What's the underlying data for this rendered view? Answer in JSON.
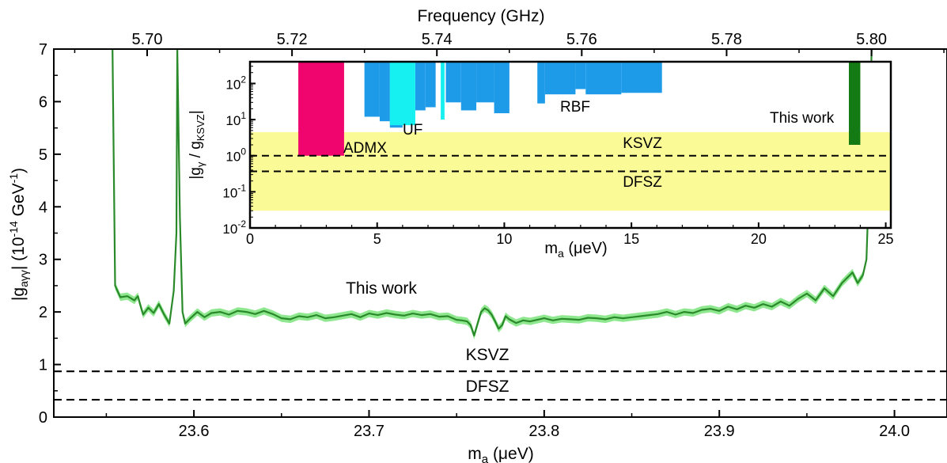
{
  "chart_data": [
    {
      "type": "line",
      "role": "main",
      "xlabel_main": "m",
      "xlabel_sub": "a",
      "xlabel_unit": " (μeV)",
      "top_xlabel": "Frequency (GHz)",
      "ylabel_pre": "|g",
      "ylabel_sub": "aγγ",
      "ylabel_post": "| (10",
      "ylabel_exp": "-14",
      "ylabel_unit": " GeV",
      "ylabel_exp2": "-1",
      "ylabel_close": ")",
      "xlim": [
        23.52,
        24.03
      ],
      "ylim": [
        0,
        7
      ],
      "x_ticks": [
        23.6,
        23.7,
        23.8,
        23.9,
        24.0
      ],
      "x_tick_labels": [
        "23.6",
        "23.7",
        "23.8",
        "23.9",
        "24.0"
      ],
      "y_ticks": [
        0,
        1,
        2,
        3,
        4,
        5,
        6,
        7
      ],
      "y_tick_labels": [
        "0",
        "1",
        "2",
        "3",
        "4",
        "5",
        "6",
        "7"
      ],
      "top_ticks": [
        5.7,
        5.72,
        5.74,
        5.76,
        5.78,
        5.8
      ],
      "top_tick_labels": [
        "5.70",
        "5.72",
        "5.74",
        "5.76",
        "5.78",
        "5.80"
      ],
      "curve": {
        "x": [
          23.5535,
          23.555,
          23.558,
          23.562,
          23.566,
          23.568,
          23.5695,
          23.571,
          23.574,
          23.577,
          23.58,
          23.583,
          23.586,
          23.5885,
          23.59,
          23.5905,
          23.592,
          23.5935,
          23.595,
          23.598,
          23.602,
          23.606,
          23.61,
          23.615,
          23.62,
          23.625,
          23.63,
          23.635,
          23.64,
          23.645,
          23.65,
          23.655,
          23.66,
          23.665,
          23.67,
          23.675,
          23.68,
          23.685,
          23.69,
          23.695,
          23.7,
          23.705,
          23.71,
          23.715,
          23.72,
          23.725,
          23.73,
          23.735,
          23.74,
          23.745,
          23.75,
          23.753,
          23.756,
          23.758,
          23.76,
          23.762,
          23.764,
          23.766,
          23.768,
          23.77,
          23.772,
          23.774,
          23.776,
          23.778,
          23.78,
          23.784,
          23.788,
          23.792,
          23.796,
          23.8,
          23.805,
          23.81,
          23.815,
          23.82,
          23.825,
          23.83,
          23.835,
          23.84,
          23.845,
          23.85,
          23.855,
          23.86,
          23.865,
          23.87,
          23.875,
          23.88,
          23.885,
          23.89,
          23.895,
          23.9,
          23.905,
          23.91,
          23.915,
          23.92,
          23.925,
          23.93,
          23.935,
          23.94,
          23.945,
          23.95,
          23.955,
          23.96,
          23.965,
          23.97,
          23.973,
          23.976,
          23.979,
          23.982,
          23.984,
          23.985,
          23.986,
          23.987
        ],
        "y": [
          7.0,
          2.5,
          2.28,
          2.3,
          2.22,
          2.3,
          2.12,
          1.95,
          2.08,
          1.98,
          2.15,
          1.95,
          1.78,
          2.4,
          3.5,
          7.0,
          3.8,
          2.0,
          1.78,
          1.88,
          2.0,
          1.9,
          1.98,
          2.0,
          1.95,
          2.02,
          2.0,
          1.96,
          2.02,
          1.96,
          1.88,
          1.86,
          1.92,
          1.9,
          1.94,
          1.88,
          1.9,
          1.93,
          1.96,
          1.9,
          1.97,
          1.94,
          1.98,
          1.95,
          1.93,
          1.97,
          1.94,
          1.96,
          1.91,
          1.92,
          1.85,
          1.84,
          1.82,
          1.75,
          1.55,
          1.78,
          2.0,
          2.07,
          2.03,
          1.95,
          1.82,
          1.68,
          1.75,
          1.92,
          1.86,
          1.79,
          1.84,
          1.82,
          1.85,
          1.88,
          1.84,
          1.87,
          1.86,
          1.85,
          1.89,
          1.88,
          1.86,
          1.9,
          1.88,
          1.9,
          1.92,
          1.94,
          1.96,
          2.0,
          1.95,
          2.0,
          1.98,
          2.04,
          2.06,
          2.02,
          2.1,
          2.05,
          2.12,
          2.08,
          2.15,
          2.1,
          2.2,
          2.12,
          2.25,
          2.35,
          2.22,
          2.45,
          2.3,
          2.55,
          2.65,
          2.75,
          2.55,
          2.7,
          3.0,
          4.0,
          5.8,
          7.0
        ]
      },
      "reference_lines": [
        {
          "name": "KSVZ",
          "y": 0.87
        },
        {
          "name": "DFSZ",
          "y": 0.33
        }
      ],
      "annotations": [
        "This work",
        "KSVZ",
        "DFSZ"
      ],
      "colors": {
        "line": "#2a8a2a",
        "band": "#8fe88f",
        "dashed": "#000000"
      }
    },
    {
      "type": "bar",
      "role": "inset",
      "xlabel_main": "m",
      "xlabel_sub": "a",
      "xlabel_unit": " (μeV)",
      "ylabel_pre": "|g",
      "ylabel_sub": "γ",
      "ylabel_mid": " / g",
      "ylabel_sub2": "KSVZ",
      "ylabel_close": "|",
      "xlim": [
        0,
        25.2
      ],
      "ylim": [
        0.01,
        400
      ],
      "y_scale": "log",
      "x_ticks": [
        0,
        5,
        10,
        15,
        20,
        25
      ],
      "x_tick_labels": [
        "0",
        "5",
        "10",
        "15",
        "20",
        "25"
      ],
      "y_ticks": [
        0.01,
        0.1,
        1,
        10,
        100
      ],
      "y_tick_labels": [
        {
          "base": "10",
          "exp": "-2"
        },
        {
          "base": "10",
          "exp": "-1"
        },
        {
          "base": "10",
          "exp": "0"
        },
        {
          "base": "10",
          "exp": "1"
        },
        {
          "base": "10",
          "exp": "2"
        }
      ],
      "model_band": {
        "y": [
          0.03,
          4.5
        ],
        "color": "#fafa96"
      },
      "reference_lines": [
        {
          "name": "KSVZ",
          "y": 1.0
        },
        {
          "name": "DFSZ",
          "y": 0.37
        }
      ],
      "exclusions": [
        {
          "name": "ADMX",
          "color": "#f0046e",
          "x": [
            1.9,
            3.7
          ],
          "y_bottom": 1.0
        },
        {
          "name": "RBF",
          "color": "#1e9be8",
          "blocks": [
            [
              4.5,
              5.1,
              12
            ],
            [
              5.1,
              5.5,
              9
            ],
            [
              5.5,
              6.0,
              6
            ],
            [
              6.5,
              6.9,
              18
            ],
            [
              6.9,
              7.3,
              22
            ],
            [
              7.7,
              8.3,
              30
            ],
            [
              8.3,
              8.9,
              18
            ],
            [
              8.9,
              9.6,
              30
            ],
            [
              9.6,
              10.2,
              15
            ],
            [
              11.3,
              11.6,
              28
            ],
            [
              11.6,
              12.8,
              50
            ],
            [
              12.8,
              13.2,
              70
            ],
            [
              13.2,
              14.6,
              50
            ],
            [
              14.6,
              16.2,
              55
            ]
          ]
        },
        {
          "name": "UF",
          "color": "#16f0f0",
          "x": [
            5.5,
            6.5
          ],
          "y_bottom": 7
        }
      ],
      "this_work": {
        "name": "This work",
        "x": [
          23.55,
          24.0
        ],
        "y_bottom": 2.0,
        "color": "#147a14"
      },
      "annotations": [
        "ADMX",
        "UF",
        "RBF",
        "KSVZ",
        "DFSZ",
        "This work"
      ]
    }
  ]
}
